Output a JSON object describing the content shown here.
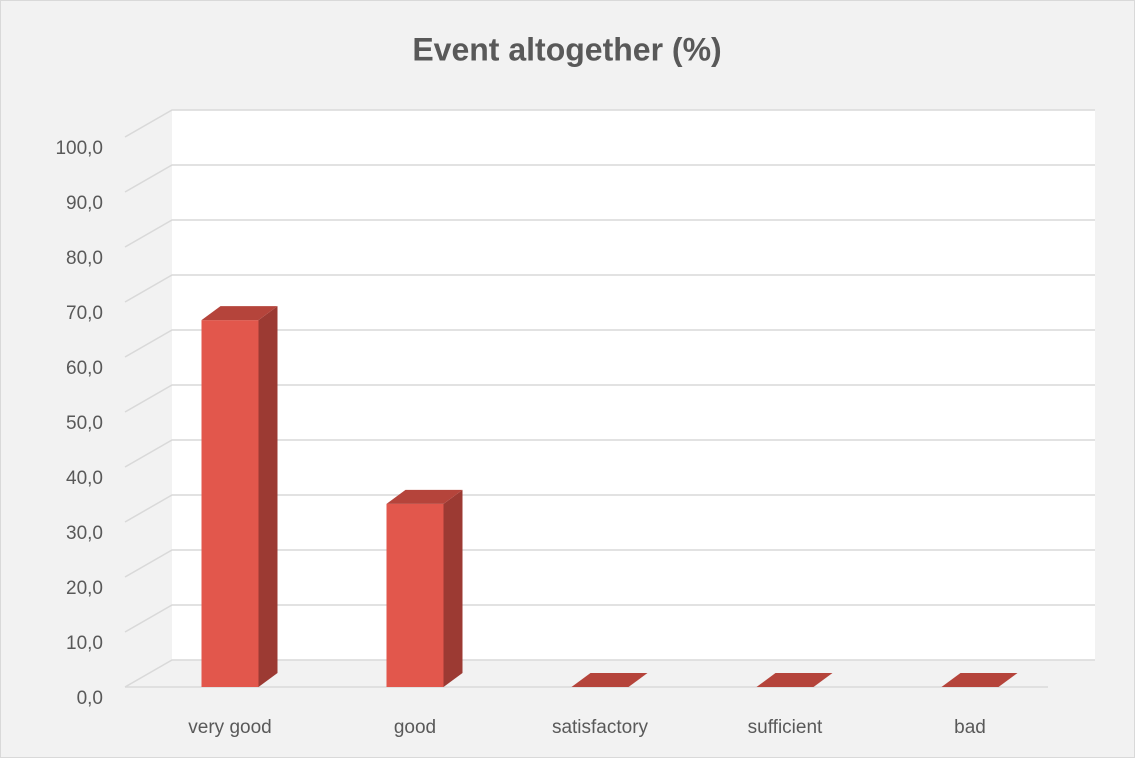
{
  "chart_data": {
    "type": "bar3d",
    "title": "Event altogether (%)",
    "categories": [
      "very good",
      "good",
      "satisfactory",
      "sufficient",
      "bad"
    ],
    "values": [
      66.7,
      33.3,
      0,
      0,
      0
    ],
    "color": "#e2574c",
    "side_color": "#9c3a33",
    "top_color": "#b5443b",
    "ylim": [
      0,
      100
    ],
    "yticks": [
      {
        "value": 0,
        "label": "0,0"
      },
      {
        "value": 10,
        "label": "10,0"
      },
      {
        "value": 20,
        "label": "20,0"
      },
      {
        "value": 30,
        "label": "30,0"
      },
      {
        "value": 40,
        "label": "40,0"
      },
      {
        "value": 50,
        "label": "50,0"
      },
      {
        "value": 60,
        "label": "60,0"
      },
      {
        "value": 70,
        "label": "70,0"
      },
      {
        "value": 80,
        "label": "80,0"
      },
      {
        "value": 90,
        "label": "90,0"
      },
      {
        "value": 100,
        "label": "100,0"
      }
    ],
    "grid": true
  }
}
